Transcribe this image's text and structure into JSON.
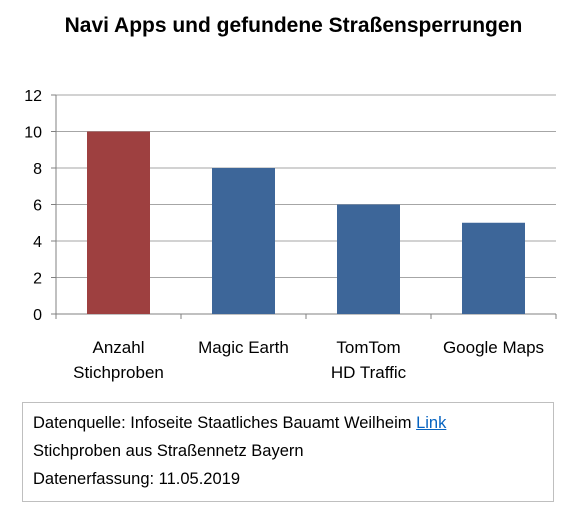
{
  "chart_data": {
    "type": "bar",
    "title": "Navi Apps und gefundene Straßensperrungen",
    "categories": [
      [
        "Anzahl",
        "Stichproben"
      ],
      [
        "Magic Earth"
      ],
      [
        "TomTom",
        "HD Traffic"
      ],
      [
        "Google Maps"
      ]
    ],
    "values": [
      10,
      8,
      6,
      5
    ],
    "colors": [
      "#9e4040",
      "#3d6699",
      "#3d6699",
      "#3d6699"
    ],
    "ylim": [
      0,
      12
    ],
    "yticks": [
      0,
      2,
      4,
      6,
      8,
      10,
      12
    ],
    "grid": true,
    "xlabel": "",
    "ylabel": ""
  },
  "source_box": {
    "prefix": "Datenquelle: Infoseite Staatliches Bauamt Weilheim ",
    "link_label": "Link",
    "line2": "Stichproben aus Straßennetz Bayern",
    "line3": "Datenerfassung: 11.05.2019"
  }
}
